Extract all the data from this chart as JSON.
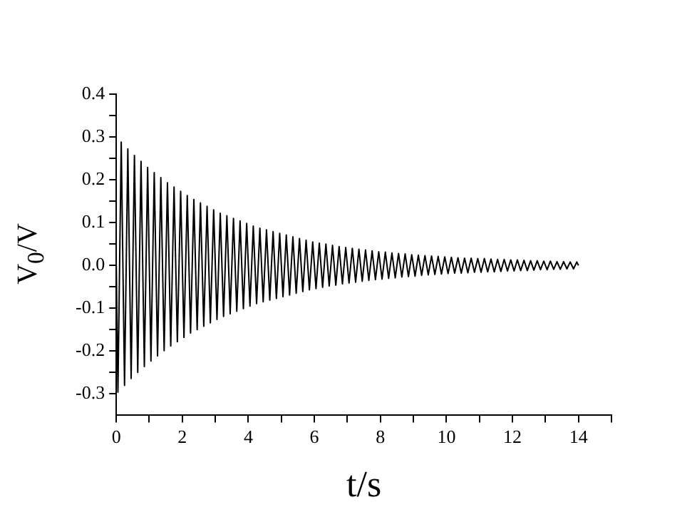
{
  "chart_data": {
    "type": "line",
    "xlabel": "t/s",
    "ylabel": "V$_{0}$/V",
    "xlim": [
      0,
      15
    ],
    "xticks": [
      0,
      {
        "value": 1,
        "label": null
      },
      2,
      {
        "value": 3,
        "label": null
      },
      4,
      {
        "value": 5,
        "label": null
      },
      6,
      {
        "value": 7,
        "label": null
      },
      8,
      {
        "value": 9,
        "label": null
      },
      10,
      {
        "value": 11,
        "label": null
      },
      12,
      {
        "value": 13,
        "label": null
      },
      14,
      {
        "value": 15,
        "label": null
      }
    ],
    "ylim": [
      -0.35,
      0.4
    ],
    "yticks": [
      -0.3,
      {
        "value": -0.25,
        "label": null
      },
      -0.2,
      {
        "value": -0.15,
        "label": null
      },
      -0.1,
      {
        "value": -0.05,
        "label": null
      },
      {
        "value": 0,
        "label": "0.0"
      },
      {
        "value": 0.05,
        "label": null
      },
      0.1,
      {
        "value": 0.15,
        "label": null
      },
      0.2,
      {
        "value": 0.25,
        "label": null
      },
      0.3,
      {
        "value": 0.35,
        "label": null
      },
      0.4
    ],
    "grid": false,
    "marker": "none",
    "line_style": "solid",
    "series": [
      {
        "color": "#000000",
        "x": [
          0,
          0.05,
          0.15,
          0.25,
          0.35,
          0.45,
          0.55,
          0.65,
          0.75,
          0.85,
          0.95,
          1.05,
          1.15,
          1.25,
          1.35,
          1.45,
          1.55,
          1.65,
          1.75,
          1.85,
          1.95,
          2.05,
          2.15,
          2.25,
          2.35,
          2.45,
          2.55,
          2.65,
          2.75,
          2.85,
          2.95,
          3.05,
          3.15,
          3.25,
          3.35,
          3.45,
          3.55,
          3.65,
          3.75,
          3.85,
          3.95,
          4.05,
          4.15,
          4.25,
          4.35,
          4.45,
          4.55,
          4.65,
          4.75,
          4.85,
          4.95,
          5.05,
          5.15,
          5.25,
          5.35,
          5.45,
          5.55,
          5.65,
          5.75,
          5.85,
          5.95,
          6.05,
          6.15,
          6.25,
          6.35,
          6.45,
          6.55,
          6.65,
          6.75,
          6.85,
          6.95,
          7.05,
          7.15,
          7.25,
          7.35,
          7.45,
          7.55,
          7.65,
          7.75,
          7.85,
          7.95,
          8.05,
          8.15,
          8.25,
          8.35,
          8.45,
          8.55,
          8.65,
          8.75,
          8.85,
          8.95,
          9.05,
          9.15,
          9.25,
          9.35,
          9.45,
          9.55,
          9.65,
          9.75,
          9.85,
          9.95,
          10.05,
          10.15,
          10.25,
          10.35,
          10.45,
          10.55,
          10.65,
          10.75,
          10.85,
          10.95,
          11.05,
          11.15,
          11.25,
          11.35,
          11.45,
          11.55,
          11.65,
          11.75,
          11.85,
          11.95,
          12.05,
          12.15,
          12.25,
          12.35,
          12.45,
          12.55,
          12.65,
          12.75,
          12.85,
          12.95,
          13.05,
          13.15,
          13.25,
          13.35,
          13.45,
          13.55,
          13.65,
          13.75,
          13.85,
          13.95,
          14
        ],
        "values": [
          0,
          -0.296,
          0.288,
          -0.28,
          0.272,
          -0.264,
          0.257,
          -0.25,
          0.243,
          -0.236,
          0.229,
          -0.223,
          0.217,
          -0.211,
          0.205,
          -0.199,
          0.193,
          -0.188,
          0.183,
          -0.178,
          0.173,
          -0.168,
          0.163,
          -0.158,
          0.154,
          -0.15,
          0.146,
          -0.142,
          0.138,
          -0.134,
          0.13,
          -0.126,
          0.122,
          -0.119,
          0.116,
          -0.113,
          0.11,
          -0.107,
          0.104,
          -0.101,
          0.098,
          -0.095,
          0.092,
          -0.089,
          0.087,
          -0.085,
          0.083,
          -0.081,
          0.079,
          -0.077,
          0.075,
          -0.073,
          0.071,
          -0.069,
          0.067,
          -0.065,
          0.063,
          -0.061,
          0.059,
          -0.057,
          0.055,
          -0.054,
          0.052,
          -0.051,
          0.05,
          -0.048,
          0.047,
          -0.046,
          0.044,
          -0.043,
          0.042,
          -0.041,
          0.04,
          -0.039,
          0.038,
          -0.037,
          0.036,
          -0.035,
          0.034,
          -0.033,
          0.032,
          -0.032,
          0.031,
          -0.03,
          0.029,
          -0.029,
          0.028,
          -0.027,
          0.027,
          -0.026,
          0.025,
          -0.025,
          0.024,
          -0.023,
          0.023,
          -0.022,
          0.022,
          -0.021,
          0.021,
          -0.02,
          0.02,
          -0.019,
          0.019,
          -0.018,
          0.018,
          -0.018,
          0.017,
          -0.017,
          0.017,
          -0.016,
          0.016,
          -0.016,
          0.016,
          -0.015,
          0.015,
          -0.015,
          0.014,
          -0.014,
          0.014,
          -0.013,
          0.013,
          -0.013,
          0.013,
          -0.012,
          0.012,
          -0.012,
          0.011,
          -0.011,
          0.011,
          -0.01,
          0.01,
          -0.01,
          0.01,
          -0.009,
          0.009,
          -0.009,
          0.009,
          -0.008,
          0.008,
          -0.008,
          0.008,
          0
        ]
      }
    ]
  }
}
